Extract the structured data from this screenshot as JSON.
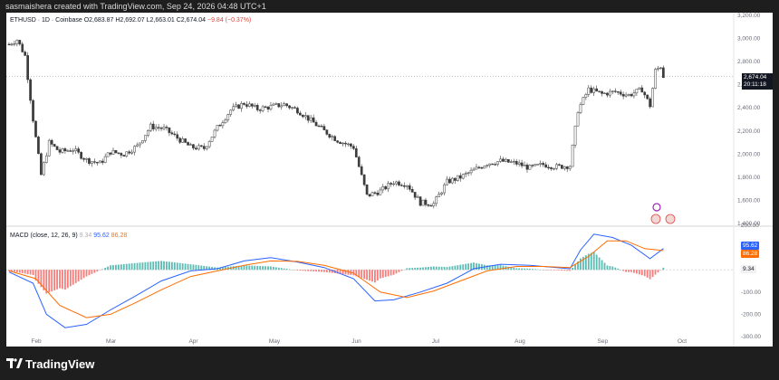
{
  "header": {
    "caption": "sasmaishera created with TradingView.com, Sep 24, 2026 04:48 UTC+1"
  },
  "chart_legend": {
    "symbol": "ETHUSD · 1D · Coinbase",
    "open": "O2,683.87",
    "high": "H2,692.07",
    "low": "L2,663.01",
    "close": "C2,674.04",
    "change": "−9.84 (−0.37%)"
  },
  "macd_legend": {
    "name": "MACD (close, 12, 26, 9)",
    "hist_value": "9.34",
    "macd_value": "95.62",
    "signal_value": "86.28"
  },
  "price_tag": {
    "price": "2,674.04",
    "countdown": "20:11:18"
  },
  "price_axis": [
    "3,200.00",
    "3,000.00",
    "2,800.00",
    "2,600.00",
    "2,400.00",
    "2,200.00",
    "2,000.00",
    "1,800.00",
    "1,600.00",
    "1,400.00"
  ],
  "macd_axis": [
    "200.00",
    "100.00",
    "0.00",
    "-100.00",
    "-200.00",
    "-300.00"
  ],
  "time_axis": [
    "Feb",
    "Mar",
    "Apr",
    "May",
    "Jun",
    "Jul",
    "Aug",
    "Sep",
    "Oct"
  ],
  "colors": {
    "up": "#26a69a",
    "down": "#ef5350",
    "candle": "#3c3c3c",
    "macd_line": "#2962ff",
    "signal_line": "#ff6d00",
    "background": "#1e1e1e"
  },
  "footer": {
    "brand": "TradingView"
  },
  "chart_data": {
    "type": "candlestick",
    "symbol": "ETHUSD",
    "interval": "1D",
    "exchange": "Coinbase",
    "last_price": 2674.04,
    "price_ylim": [
      1400,
      3200
    ],
    "macd_ylim": [
      -300,
      200
    ],
    "close_path": [
      {
        "x": "2026-01-22",
        "y": 2950
      },
      {
        "x": "2026-01-25",
        "y": 2990
      },
      {
        "x": "2026-01-28",
        "y": 2850
      },
      {
        "x": "2026-01-31",
        "y": 2300
      },
      {
        "x": "2026-02-03",
        "y": 1820
      },
      {
        "x": "2026-02-06",
        "y": 2100
      },
      {
        "x": "2026-02-10",
        "y": 2020
      },
      {
        "x": "2026-02-15",
        "y": 2040
      },
      {
        "x": "2026-02-20",
        "y": 1950
      },
      {
        "x": "2026-02-25",
        "y": 1920
      },
      {
        "x": "2026-03-01",
        "y": 2020
      },
      {
        "x": "2026-03-06",
        "y": 2000
      },
      {
        "x": "2026-03-11",
        "y": 2070
      },
      {
        "x": "2026-03-16",
        "y": 2240
      },
      {
        "x": "2026-03-21",
        "y": 2220
      },
      {
        "x": "2026-03-26",
        "y": 2140
      },
      {
        "x": "2026-03-31",
        "y": 2060
      },
      {
        "x": "2026-04-05",
        "y": 2050
      },
      {
        "x": "2026-04-10",
        "y": 2230
      },
      {
        "x": "2026-04-15",
        "y": 2380
      },
      {
        "x": "2026-04-20",
        "y": 2440
      },
      {
        "x": "2026-04-25",
        "y": 2390
      },
      {
        "x": "2026-04-30",
        "y": 2410
      },
      {
        "x": "2026-05-05",
        "y": 2430
      },
      {
        "x": "2026-05-10",
        "y": 2380
      },
      {
        "x": "2026-05-15",
        "y": 2290
      },
      {
        "x": "2026-05-20",
        "y": 2200
      },
      {
        "x": "2026-05-25",
        "y": 2120
      },
      {
        "x": "2026-05-31",
        "y": 2060
      },
      {
        "x": "2026-06-05",
        "y": 1640
      },
      {
        "x": "2026-06-10",
        "y": 1680
      },
      {
        "x": "2026-06-15",
        "y": 1760
      },
      {
        "x": "2026-06-20",
        "y": 1740
      },
      {
        "x": "2026-06-25",
        "y": 1580
      },
      {
        "x": "2026-06-30",
        "y": 1570
      },
      {
        "x": "2026-07-05",
        "y": 1760
      },
      {
        "x": "2026-07-10",
        "y": 1800
      },
      {
        "x": "2026-07-15",
        "y": 1860
      },
      {
        "x": "2026-07-20",
        "y": 1920
      },
      {
        "x": "2026-07-25",
        "y": 1940
      },
      {
        "x": "2026-07-31",
        "y": 1920
      },
      {
        "x": "2026-08-05",
        "y": 1880
      },
      {
        "x": "2026-08-10",
        "y": 1910
      },
      {
        "x": "2026-08-15",
        "y": 1890
      },
      {
        "x": "2026-08-20",
        "y": 1900
      },
      {
        "x": "2026-08-23",
        "y": 2380
      },
      {
        "x": "2026-08-27",
        "y": 2560
      },
      {
        "x": "2026-09-01",
        "y": 2520
      },
      {
        "x": "2026-09-06",
        "y": 2540
      },
      {
        "x": "2026-09-11",
        "y": 2510
      },
      {
        "x": "2026-09-16",
        "y": 2560
      },
      {
        "x": "2026-09-19",
        "y": 2420
      },
      {
        "x": "2026-09-21",
        "y": 2720
      },
      {
        "x": "2026-09-23",
        "y": 2760
      },
      {
        "x": "2026-09-24",
        "y": 2674
      }
    ],
    "macd_path": [
      {
        "x": "2026-01-22",
        "y": -10
      },
      {
        "x": "2026-01-31",
        "y": -60
      },
      {
        "x": "2026-02-05",
        "y": -200
      },
      {
        "x": "2026-02-12",
        "y": -260
      },
      {
        "x": "2026-02-20",
        "y": -245
      },
      {
        "x": "2026-03-01",
        "y": -180
      },
      {
        "x": "2026-03-10",
        "y": -120
      },
      {
        "x": "2026-03-20",
        "y": -50
      },
      {
        "x": "2026-03-31",
        "y": -5
      },
      {
        "x": "2026-04-10",
        "y": 5
      },
      {
        "x": "2026-04-20",
        "y": 40
      },
      {
        "x": "2026-04-30",
        "y": 55
      },
      {
        "x": "2026-05-10",
        "y": 35
      },
      {
        "x": "2026-05-20",
        "y": 10
      },
      {
        "x": "2026-05-31",
        "y": -40
      },
      {
        "x": "2026-06-08",
        "y": -140
      },
      {
        "x": "2026-06-15",
        "y": -135
      },
      {
        "x": "2026-06-25",
        "y": -100
      },
      {
        "x": "2026-07-05",
        "y": -60
      },
      {
        "x": "2026-07-15",
        "y": 5
      },
      {
        "x": "2026-07-25",
        "y": 25
      },
      {
        "x": "2026-08-05",
        "y": 20
      },
      {
        "x": "2026-08-15",
        "y": 10
      },
      {
        "x": "2026-08-20",
        "y": 5
      },
      {
        "x": "2026-08-24",
        "y": 90
      },
      {
        "x": "2026-08-29",
        "y": 160
      },
      {
        "x": "2026-09-05",
        "y": 145
      },
      {
        "x": "2026-09-12",
        "y": 110
      },
      {
        "x": "2026-09-19",
        "y": 50
      },
      {
        "x": "2026-09-24",
        "y": 95.62
      }
    ],
    "signal_path": [
      {
        "x": "2026-01-22",
        "y": -5
      },
      {
        "x": "2026-02-01",
        "y": -40
      },
      {
        "x": "2026-02-10",
        "y": -160
      },
      {
        "x": "2026-02-20",
        "y": -215
      },
      {
        "x": "2026-03-01",
        "y": -200
      },
      {
        "x": "2026-03-10",
        "y": -150
      },
      {
        "x": "2026-03-20",
        "y": -90
      },
      {
        "x": "2026-03-31",
        "y": -30
      },
      {
        "x": "2026-04-10",
        "y": -5
      },
      {
        "x": "2026-04-20",
        "y": 20
      },
      {
        "x": "2026-04-30",
        "y": 40
      },
      {
        "x": "2026-05-10",
        "y": 38
      },
      {
        "x": "2026-05-20",
        "y": 20
      },
      {
        "x": "2026-05-31",
        "y": -15
      },
      {
        "x": "2026-06-10",
        "y": -100
      },
      {
        "x": "2026-06-20",
        "y": -125
      },
      {
        "x": "2026-06-30",
        "y": -95
      },
      {
        "x": "2026-07-10",
        "y": -50
      },
      {
        "x": "2026-07-20",
        "y": -5
      },
      {
        "x": "2026-07-31",
        "y": 15
      },
      {
        "x": "2026-08-10",
        "y": 15
      },
      {
        "x": "2026-08-20",
        "y": 10
      },
      {
        "x": "2026-08-27",
        "y": 60
      },
      {
        "x": "2026-09-03",
        "y": 130
      },
      {
        "x": "2026-09-10",
        "y": 130
      },
      {
        "x": "2026-09-17",
        "y": 95
      },
      {
        "x": "2026-09-24",
        "y": 86.28
      }
    ],
    "macd_histogram_last": 9.34
  }
}
